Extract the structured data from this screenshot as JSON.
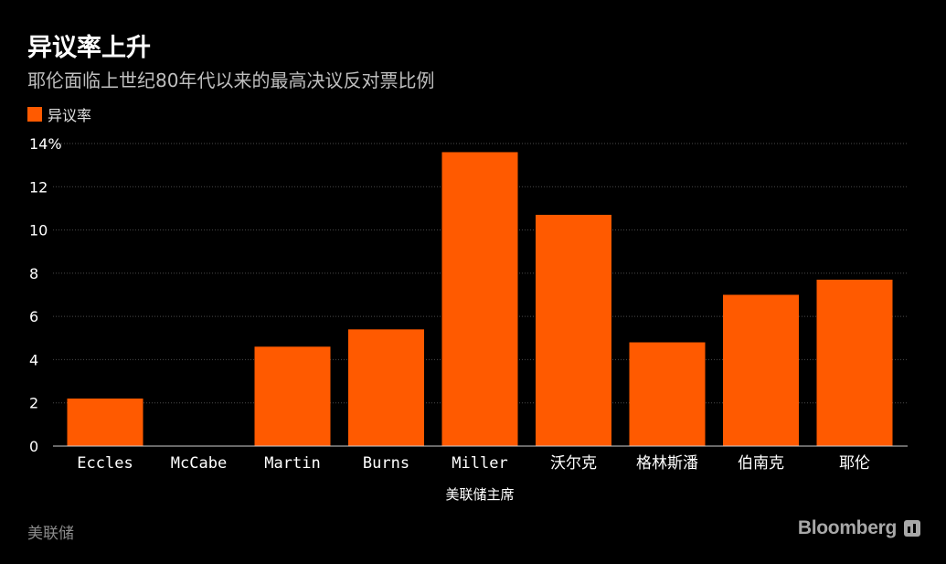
{
  "chart_data": {
    "type": "bar",
    "title": "异议率上升",
    "subtitle": "耶伦面临上世纪80年代以来的最高决议反对票比例",
    "legend": [
      "异议率"
    ],
    "categories": [
      "Eccles",
      "McCabe",
      "Martin",
      "Burns",
      "Miller",
      "沃尔克",
      "格林斯潘",
      "伯南克",
      "耶伦"
    ],
    "series": [
      {
        "name": "异议率",
        "values": [
          2.2,
          0,
          4.6,
          5.4,
          13.6,
          10.7,
          4.8,
          7.0,
          7.7
        ]
      }
    ],
    "xlabel": "美联储主席",
    "ylabel": "",
    "ylim": [
      0,
      14
    ],
    "yticks": [
      "0",
      "2",
      "4",
      "6",
      "8",
      "10",
      "12",
      "14%"
    ],
    "bar_color": "#ff5a00",
    "grid": true,
    "legend_position": "top-left"
  },
  "footer": {
    "source": "美联储",
    "brand": "Bloomberg"
  },
  "colors": {
    "background": "#000000",
    "bar": "#ff5a00",
    "grid": "#4a4a4a"
  }
}
